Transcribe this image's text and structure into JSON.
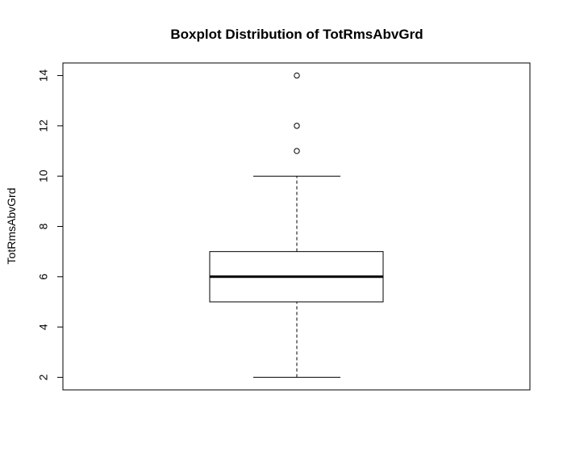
{
  "chart_data": {
    "type": "boxplot",
    "title": "Boxplot Distribution of TotRmsAbvGrd",
    "xlabel": "",
    "ylabel": "TotRmsAbvGrd",
    "ylim": [
      1.5,
      14.5
    ],
    "yticks": [
      2,
      4,
      6,
      8,
      10,
      12,
      14
    ],
    "grid": false,
    "stats": {
      "whisker_low": 2,
      "q1": 5,
      "median": 6,
      "q3": 7,
      "whisker_high": 10
    },
    "outliers": [
      11,
      12,
      14
    ]
  }
}
